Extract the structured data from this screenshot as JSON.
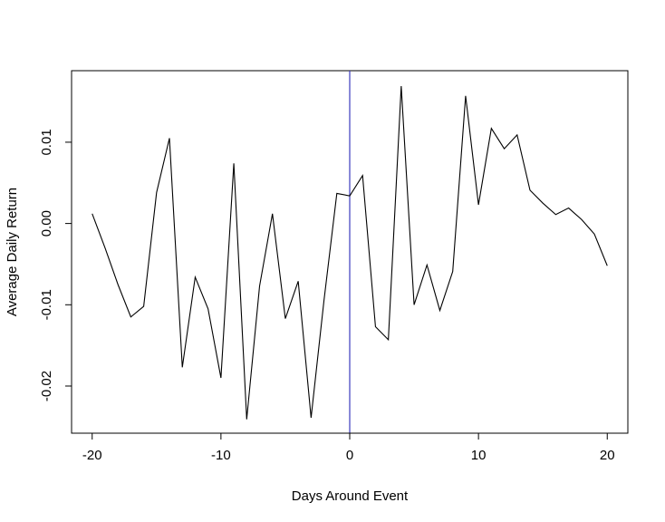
{
  "chart_data": {
    "type": "line",
    "title": "",
    "xlabel": "Days Around Event",
    "ylabel": "Average Daily Return",
    "xlim": [
      -21.6,
      21.6
    ],
    "ylim": [
      -0.0258,
      0.0188
    ],
    "x_ticks": [
      -20,
      -10,
      0,
      10,
      20
    ],
    "x_tick_labels": [
      "-20",
      "-10",
      "0",
      "10",
      "20"
    ],
    "y_ticks": [
      -0.02,
      -0.01,
      0.0,
      0.01
    ],
    "y_tick_labels": [
      "-0.02",
      "-0.01",
      "0.00",
      "0.01"
    ],
    "vline": {
      "x": 0,
      "color": "#3b3bbd"
    },
    "line_color": "#000000",
    "grid": false,
    "legend": "none",
    "x": [
      -20,
      -19,
      -18,
      -17,
      -16,
      -15,
      -14,
      -13,
      -12,
      -11,
      -10,
      -9,
      -8,
      -7,
      -6,
      -5,
      -4,
      -3,
      -2,
      -1,
      0,
      1,
      2,
      3,
      4,
      5,
      6,
      7,
      8,
      9,
      10,
      11,
      12,
      13,
      14,
      15,
      16,
      17,
      18,
      19,
      20
    ],
    "series": [
      {
        "values": [
          0.0012,
          -0.003,
          -0.0075,
          -0.0115,
          -0.0102,
          0.0038,
          0.0105,
          -0.0177,
          -0.0066,
          -0.0105,
          -0.019,
          0.0074,
          -0.0241,
          -0.0077,
          0.0012,
          -0.0117,
          -0.0071,
          -0.0239,
          -0.0095,
          0.0037,
          0.0034,
          0.0059,
          -0.0127,
          -0.0143,
          0.0169,
          -0.01,
          -0.0051,
          -0.0107,
          -0.0059,
          0.0157,
          0.0023,
          0.0117,
          0.0092,
          0.0109,
          0.0041,
          0.0025,
          0.0011,
          0.0019,
          0.0005,
          -0.0013,
          -0.0052
        ]
      }
    ]
  }
}
